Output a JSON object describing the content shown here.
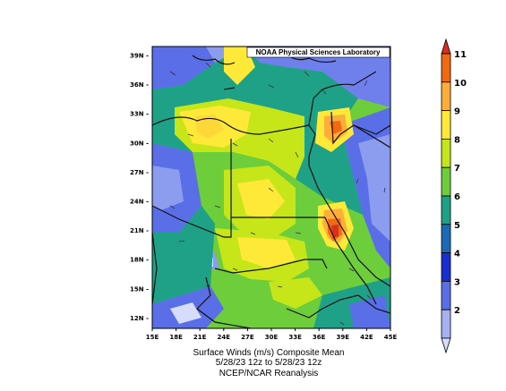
{
  "map": {
    "credit": "NOAA Physical Sciences Laboratory",
    "lat_ticks": [
      "39N",
      "36N",
      "33N",
      "30N",
      "27N",
      "24N",
      "21N",
      "18N",
      "15N",
      "12N"
    ],
    "lon_ticks": [
      "15E",
      "18E",
      "21E",
      "24E",
      "27E",
      "30E",
      "33E",
      "36E",
      "39E",
      "42E",
      "45E"
    ],
    "lon_range": [
      15,
      45
    ],
    "lat_range": [
      10,
      40
    ],
    "variable": "Surface Winds (m/s)"
  },
  "colorbar": {
    "levels": [
      "11",
      "10",
      "9",
      "8",
      "7",
      "6",
      "5",
      "4",
      "3",
      "2"
    ],
    "colors": [
      "#d7301f",
      "#f16913",
      "#fdae38",
      "#fee838",
      "#c6e61a",
      "#6dcd3a",
      "#1fa187",
      "#1b6ab7",
      "#1a2fd0",
      "#5a6ee8",
      "#a6b1f2",
      "#d6dcf9"
    ]
  },
  "caption": {
    "line1": "Surface Winds (m/s)     Composite Mean",
    "line2": "5/28/23 12z  to 5/28/23 12z",
    "line3": "NCEP/NCAR Reanalysis"
  }
}
